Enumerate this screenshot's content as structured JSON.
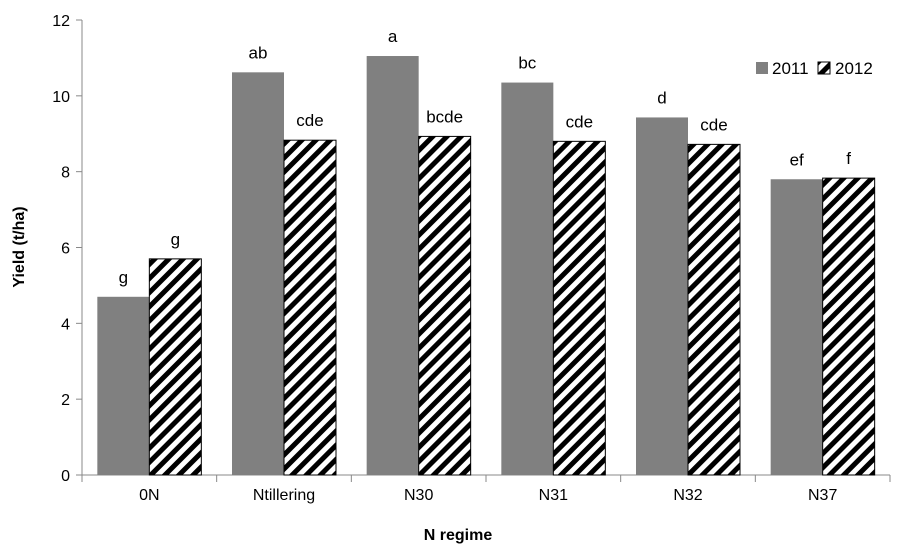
{
  "chart_data": {
    "type": "bar",
    "title": "",
    "xlabel": "N regime",
    "ylabel": "Yield (t/ha)",
    "ylim": [
      0,
      12
    ],
    "yticks": [
      0,
      2,
      4,
      6,
      8,
      10,
      12
    ],
    "grid": false,
    "legend_position": "top-right",
    "categories": [
      "0N",
      "Ntillering",
      "N30",
      "N31",
      "N32",
      "N37"
    ],
    "series": [
      {
        "name": "2011",
        "pattern": "solid",
        "color": "#808080",
        "values": [
          4.7,
          10.62,
          11.05,
          10.35,
          9.43,
          7.8
        ],
        "labels": [
          "g",
          "ab",
          "a",
          "bc",
          "d",
          "ef"
        ]
      },
      {
        "name": "2012",
        "pattern": "diagonal-stripes",
        "color": "#000000",
        "values": [
          5.7,
          8.83,
          8.93,
          8.8,
          8.72,
          7.83
        ],
        "labels": [
          "g",
          "cde",
          "bcde",
          "cde",
          "cde",
          "f"
        ]
      }
    ]
  }
}
